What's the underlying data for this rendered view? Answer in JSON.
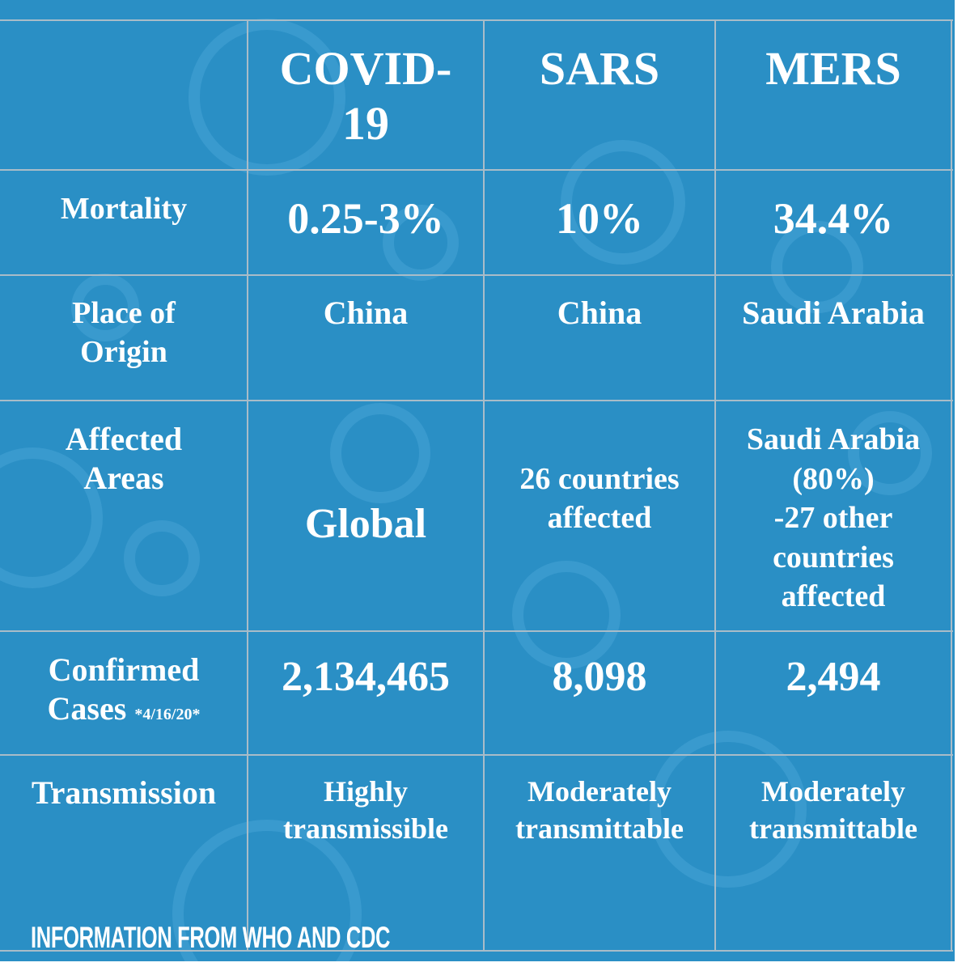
{
  "header": {
    "columns": [
      [
        "COVID-",
        "19"
      ],
      [
        "SARS"
      ],
      [
        "MERS"
      ]
    ]
  },
  "rows": [
    {
      "label": [
        "Mortality"
      ],
      "cells": [
        [
          "0.25-3%"
        ],
        [
          "10%"
        ],
        [
          "34.4%"
        ]
      ]
    },
    {
      "label": [
        "Place of",
        "Origin"
      ],
      "cells": [
        [
          "China"
        ],
        [
          "China"
        ],
        [
          "Saudi Arabia"
        ]
      ]
    },
    {
      "label": [
        "Affected",
        "Areas"
      ],
      "cells": [
        [
          "Global"
        ],
        [
          "26 countries",
          "affected"
        ],
        [
          "Saudi Arabia",
          "(80%)",
          "-27 other",
          "countries",
          "affected"
        ]
      ]
    },
    {
      "label": [
        "Confirmed",
        "Cases"
      ],
      "note": "*4/16/20*",
      "cells": [
        [
          "2,134,465"
        ],
        [
          "8,098"
        ],
        [
          "2,494"
        ]
      ]
    },
    {
      "label": [
        "Transmission"
      ],
      "cells": [
        [
          "Highly",
          "transmissible"
        ],
        [
          "Moderately",
          "transmittable"
        ],
        [
          "Moderately",
          "transmittable"
        ]
      ]
    }
  ],
  "footer": "INFORMATION FROM WHO AND CDC"
}
